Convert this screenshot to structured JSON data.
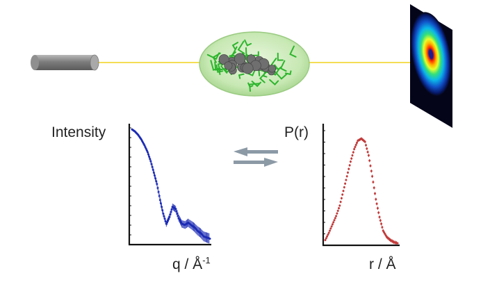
{
  "colors": {
    "beam": "#f2d21a",
    "saxs_curve": "#1c2bb4",
    "pr_curve": "#c23a3a",
    "exchange_arrows": "#8c9aa6",
    "sample_cell": "#a8d88f",
    "source": "#8a8a8a"
  },
  "icons": {
    "source": "x-ray-source-cylinder-icon",
    "sample": "protein-in-solution-ellipsoid-icon",
    "detector": "scattering-detector-icon",
    "exchange": "bidirectional-arrows-icon"
  },
  "left_plot": {
    "ylabel": "Intensity",
    "xlabel_main": "q / Å",
    "xlabel_sup": "-1"
  },
  "right_plot": {
    "ylabel": "P(r)",
    "xlabel": "r / Å"
  },
  "chart_data": [
    {
      "type": "scatter",
      "title": "",
      "xlabel": "q / Å-1",
      "ylabel": "Intensity",
      "x": [
        0.0,
        0.04,
        0.08,
        0.12,
        0.16,
        0.2,
        0.24,
        0.28,
        0.32,
        0.36,
        0.4,
        0.44,
        0.48,
        0.52,
        0.56,
        0.6,
        0.64,
        0.68,
        0.72,
        0.76,
        0.8,
        0.84,
        0.88,
        0.92,
        0.96,
        1.0
      ],
      "y": [
        1.0,
        0.98,
        0.95,
        0.91,
        0.86,
        0.8,
        0.72,
        0.62,
        0.52,
        0.38,
        0.26,
        0.17,
        0.23,
        0.32,
        0.3,
        0.22,
        0.17,
        0.16,
        0.18,
        0.16,
        0.14,
        0.11,
        0.09,
        0.06,
        0.05,
        0.04
      ],
      "xlim": [
        0,
        1
      ],
      "ylim": [
        0,
        1.05
      ]
    },
    {
      "type": "scatter",
      "title": "",
      "xlabel": "r / Å",
      "ylabel": "P(r)",
      "x": [
        0.0,
        0.05,
        0.1,
        0.15,
        0.2,
        0.25,
        0.3,
        0.35,
        0.4,
        0.45,
        0.5,
        0.55,
        0.6,
        0.65,
        0.7,
        0.75,
        0.8,
        0.85,
        0.9,
        0.95,
        1.0
      ],
      "y": [
        0.03,
        0.1,
        0.18,
        0.26,
        0.36,
        0.5,
        0.64,
        0.78,
        0.9,
        0.98,
        1.0,
        0.97,
        0.84,
        0.64,
        0.42,
        0.25,
        0.12,
        0.06,
        0.03,
        0.01,
        0.0
      ],
      "xlim": [
        0,
        1
      ],
      "ylim": [
        0,
        1.05
      ]
    }
  ]
}
